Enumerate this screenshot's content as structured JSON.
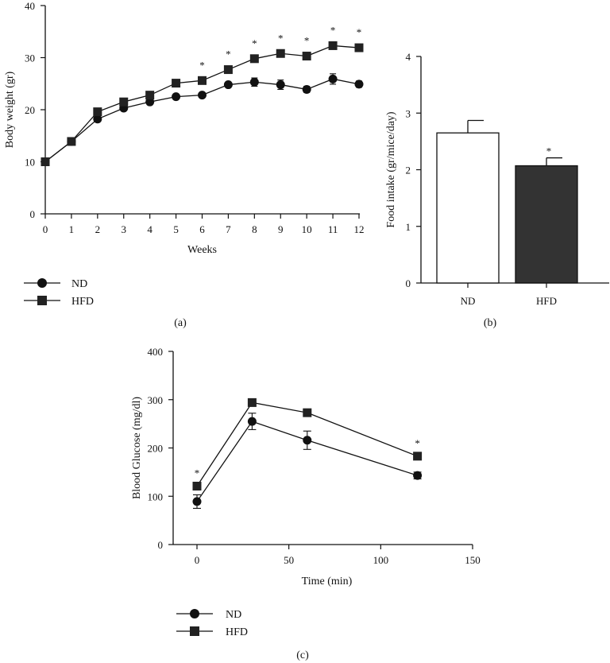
{
  "chart_data": [
    {
      "panel": "(a)",
      "type": "line",
      "xlabel": "Weeks",
      "ylabel": "Body weight (gr)",
      "xlim": [
        0,
        12
      ],
      "ylim": [
        0,
        40
      ],
      "xticks": [
        "0",
        "1",
        "2",
        "3",
        "4",
        "5",
        "6",
        "7",
        "8",
        "9",
        "10",
        "11",
        "12"
      ],
      "yticks": [
        "0",
        "10",
        "20",
        "30",
        "40"
      ],
      "x": [
        0,
        1,
        2,
        3,
        4,
        5,
        6,
        7,
        8,
        9,
        10,
        11,
        12
      ],
      "series": [
        {
          "name": "ND",
          "marker": "circle",
          "values": [
            10,
            13.9,
            18.2,
            20.3,
            21.5,
            22.5,
            22.8,
            24.8,
            25.3,
            24.8,
            23.9,
            25.9,
            24.9
          ],
          "errors": [
            0,
            0,
            0.4,
            0,
            0,
            0,
            0,
            0,
            0.8,
            0.9,
            0.6,
            1,
            0.6
          ]
        },
        {
          "name": "HFD",
          "marker": "square",
          "values": [
            10,
            13.9,
            19.6,
            21.5,
            22.8,
            25.1,
            25.6,
            27.7,
            29.8,
            30.8,
            30.3,
            32.3,
            31.9
          ],
          "errors": [
            0,
            0,
            0,
            0,
            0,
            0,
            0,
            0,
            0,
            0,
            0,
            0,
            0
          ]
        }
      ],
      "stars": [
        6,
        7,
        8,
        9,
        10,
        11,
        12
      ],
      "star_symbol": "*",
      "legend_position": "bottom-left",
      "grid": false
    },
    {
      "panel": "(b)",
      "type": "bar",
      "ylabel": "Food intake (gr/mice/day)",
      "categories": [
        "ND",
        "HFD"
      ],
      "values": [
        2.65,
        2.07
      ],
      "errors": [
        0.22,
        0.14
      ],
      "colors": [
        "#ffffff",
        "#333333"
      ],
      "ylim": [
        0,
        4
      ],
      "yticks": [
        "0",
        "1",
        "2",
        "3",
        "4"
      ],
      "stars": [
        1
      ],
      "star_symbol": "*",
      "grid": false
    },
    {
      "panel": "(c)",
      "type": "line",
      "xlabel": "Time (min)",
      "ylabel": "Blood Glucose (mg/dl)",
      "xlim": [
        0,
        150
      ],
      "ylim": [
        0,
        400
      ],
      "xticks": [
        "0",
        "50",
        "100",
        "150"
      ],
      "yticks": [
        "0",
        "100",
        "200",
        "300",
        "400"
      ],
      "x": [
        0,
        30,
        60,
        120
      ],
      "series": [
        {
          "name": "ND",
          "marker": "circle",
          "values": [
            89,
            255,
            216,
            143
          ],
          "errors": [
            14,
            17,
            19,
            7
          ]
        },
        {
          "name": "HFD",
          "marker": "square",
          "values": [
            121,
            294,
            273,
            183
          ],
          "errors": [
            0,
            0,
            0,
            0
          ]
        }
      ],
      "stars": [
        0,
        120
      ],
      "star_symbol": "*",
      "legend_position": "bottom-left",
      "grid": false
    }
  ]
}
